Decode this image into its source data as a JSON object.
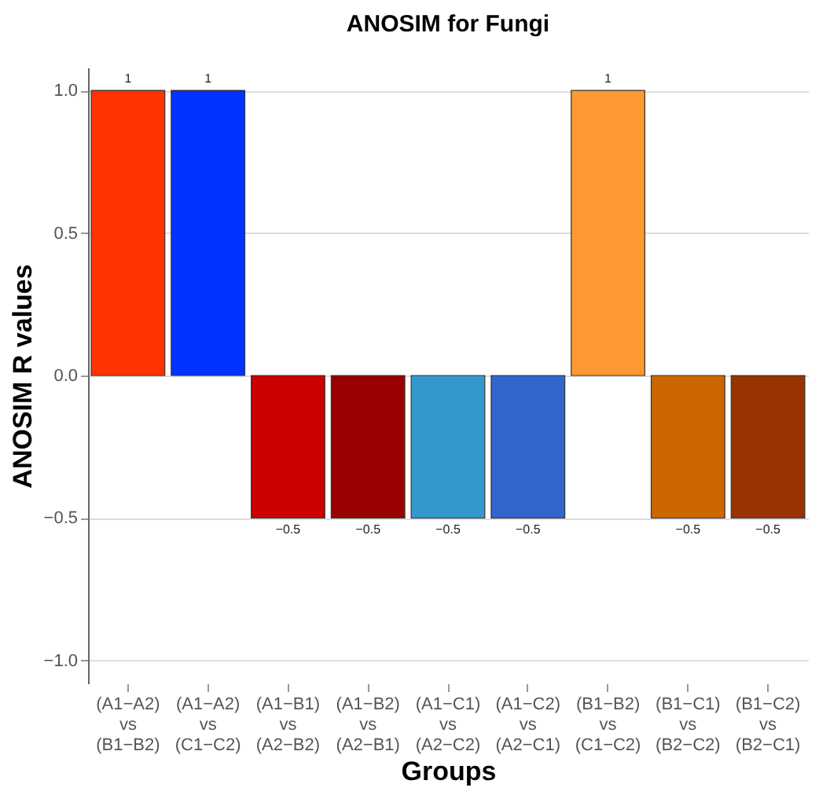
{
  "chart_data": {
    "type": "bar",
    "title": "ANOSIM for Fungi",
    "xlabel": "Groups",
    "ylabel": "ANOSIM R values",
    "categories": [
      "(A1−A2)\nvs\n(B1−B2)",
      "(A1−A2)\nvs\n(C1−C2)",
      "(A1−B1)\nvs\n(A2−B2)",
      "(A1−B2)\nvs\n(A2−B1)",
      "(A1−C1)\nvs\n(A2−C2)",
      "(A1−C2)\nvs\n(A2−C1)",
      "(B1−B2)\nvs\n(C1−C2)",
      "(B1−C1)\nvs\n(B2−C2)",
      "(B1−C2)\nvs\n(B2−C1)"
    ],
    "values": [
      1,
      1,
      -0.5,
      -0.5,
      -0.5,
      -0.5,
      1,
      -0.5,
      -0.5
    ],
    "colors": [
      "#ff3300",
      "#0033ff",
      "#cc0000",
      "#990000",
      "#3399cc",
      "#3366cc",
      "#ff9933",
      "#cc6600",
      "#993300"
    ],
    "value_labels": [
      "1",
      "1",
      "−0.5",
      "−0.5",
      "−0.5",
      "−0.5",
      "1",
      "−0.5",
      "−0.5"
    ],
    "ylim": [
      -1.08,
      1.08
    ],
    "yticks": [
      {
        "value": -1,
        "label": "−1.0"
      },
      {
        "value": -0.5,
        "label": "−0.5"
      },
      {
        "value": 0,
        "label": "0.0"
      },
      {
        "value": 0.5,
        "label": "0.5"
      },
      {
        "value": 1,
        "label": "1.0"
      }
    ],
    "grid": "y"
  }
}
